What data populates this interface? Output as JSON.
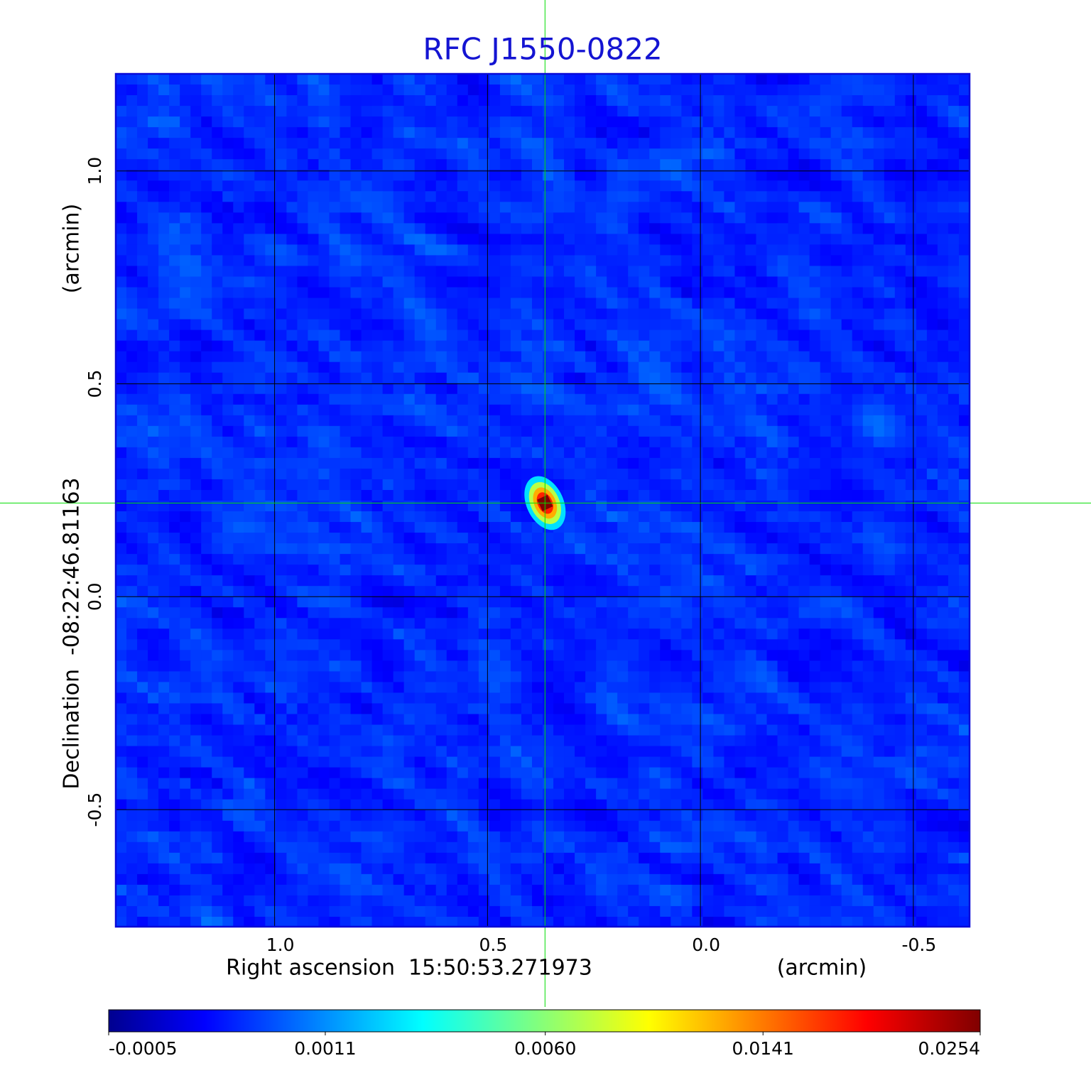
{
  "chart_data": {
    "type": "heatmap",
    "title": "RFC J1550-0822",
    "x_label": "Right ascension  15:50:53.271973",
    "x_unit": "(arcmin)",
    "y_label": "Declination  -08:22:46.81163",
    "y_unit": "(arcmin)",
    "xlim": [
      1.373,
      -0.632
    ],
    "ylim": [
      -0.775,
      1.228
    ],
    "xticks": [
      {
        "value": 1,
        "label": "1.0"
      },
      0.5,
      {
        "value": 0,
        "label": "0.0"
      },
      -0.5
    ],
    "yticks": [
      {
        "value": 1,
        "label": "1.0"
      },
      0.5,
      {
        "value": 0,
        "label": "0.0"
      },
      -0.5
    ],
    "grid": true,
    "colormap": "jet",
    "colorbar": {
      "scale": "sqrt",
      "lim": [
        -0.0005,
        0.0254
      ],
      "ticks": [
        -0.0005,
        0.0011,
        {
          "value": 0.006,
          "label": "0.0060"
        },
        0.0141,
        0.0254
      ]
    },
    "source": {
      "x": 0.365,
      "y": 0.22,
      "peak": 0.0254
    },
    "crosshair": {
      "x": 0.365,
      "y": 0.22,
      "color": "#00dd00"
    }
  }
}
